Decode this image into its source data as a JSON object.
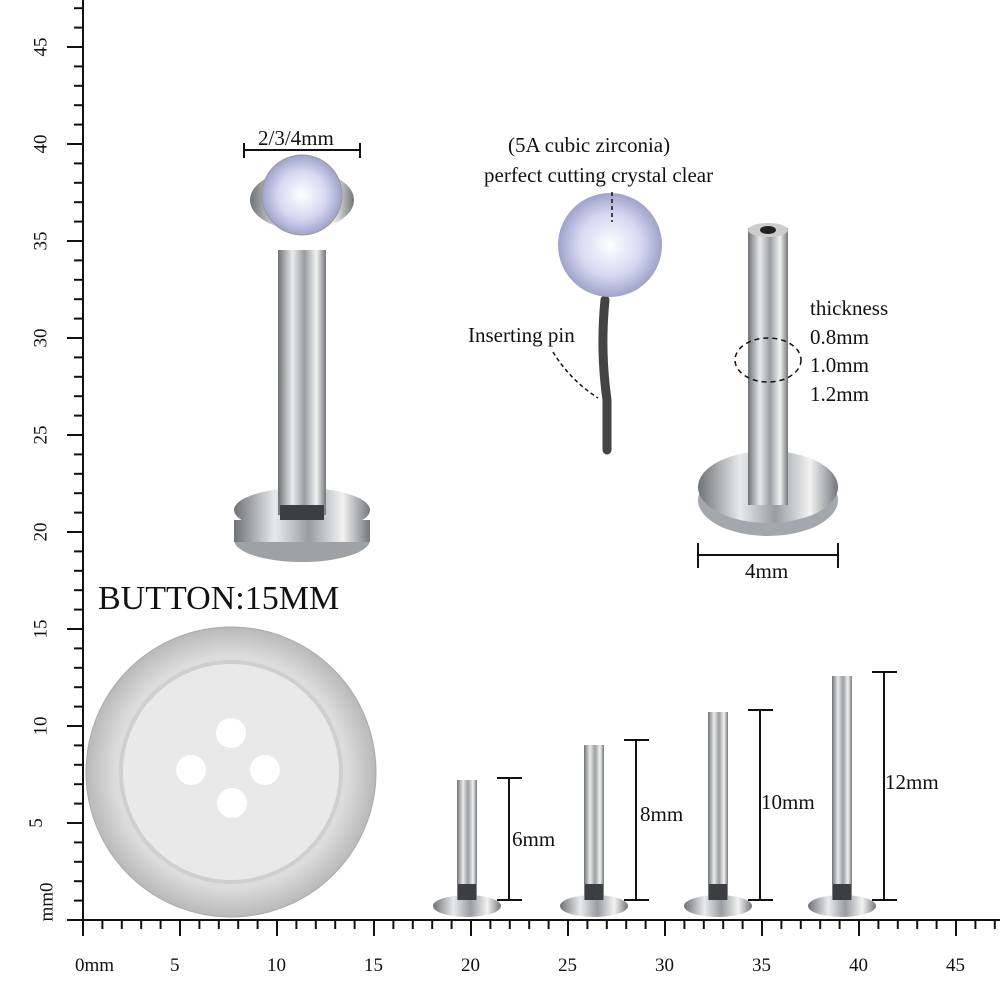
{
  "rulers": {
    "vertical_labels": [
      "mm0",
      "5",
      "10",
      "15",
      "20",
      "25",
      "30",
      "35",
      "40",
      "45"
    ],
    "horizontal_labels": [
      "0mm",
      "5",
      "10",
      "15",
      "20",
      "25",
      "30",
      "35",
      "40",
      "45"
    ]
  },
  "labels": {
    "top_size": "2/3/4mm",
    "crystal_line1": "(5A cubic zirconia)",
    "crystal_line2": "perfect cutting crystal clear",
    "inserting_pin": "Inserting pin",
    "thickness_title": "thickness",
    "thickness_options": [
      "0.8mm",
      "1.0mm",
      "1.2mm"
    ],
    "base_width": "4mm",
    "button_scale": "BUTTON:15MM",
    "lengths": [
      "6mm",
      "8mm",
      "10mm",
      "12mm"
    ]
  },
  "colors": {
    "metal": "#c9cbcd",
    "metal_dark": "#7d8085",
    "ink": "#111111"
  }
}
